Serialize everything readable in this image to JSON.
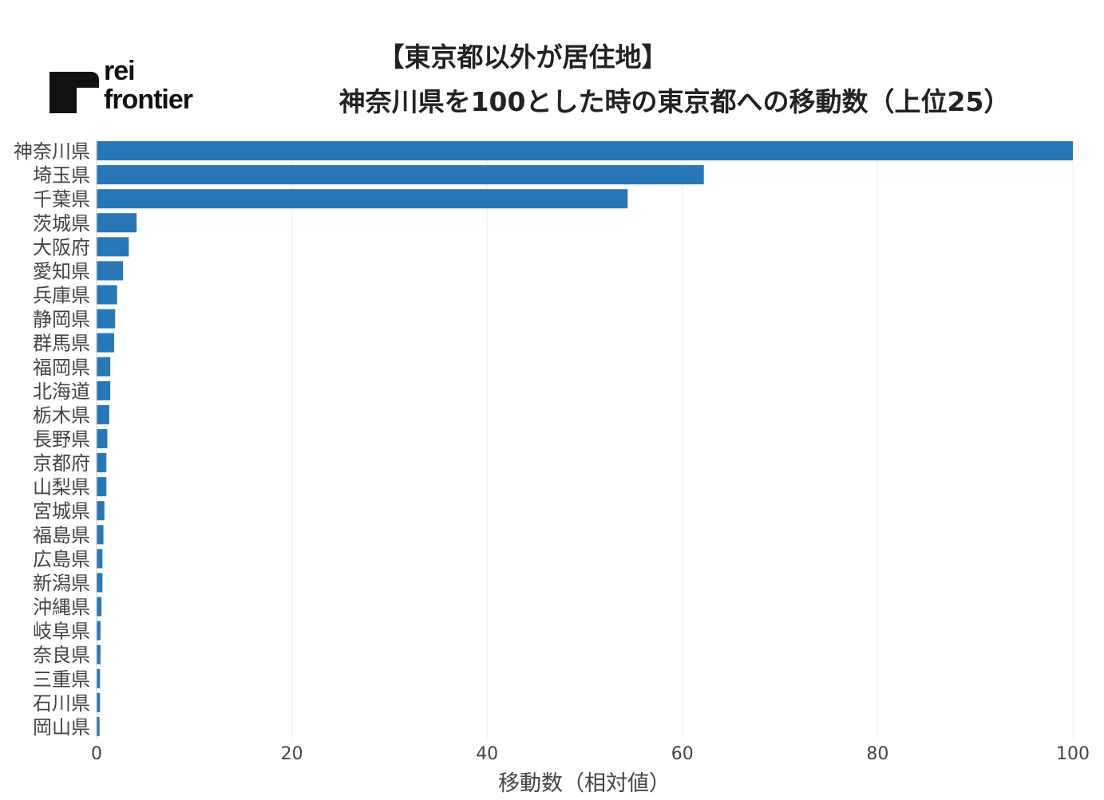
{
  "logo": {
    "line1": "rei",
    "line2": "frontier"
  },
  "colors": {
    "bar": "#2878b8",
    "grid": "#eeeeee",
    "text": "#444444",
    "title": "#222222"
  },
  "chart_data": {
    "type": "bar",
    "orientation": "horizontal",
    "title": [
      "【東京都以外が居住地】",
      "神奈川県を100とした時の東京都への移動数（上位25）"
    ],
    "xlabel": "移動数（相対値）",
    "ylabel": "",
    "xlim": [
      0,
      100
    ],
    "xticks": [
      0,
      20,
      40,
      60,
      80,
      100
    ],
    "grid": true,
    "categories": [
      "神奈川県",
      "埼玉県",
      "千葉県",
      "茨城県",
      "大阪府",
      "愛知県",
      "兵庫県",
      "静岡県",
      "群馬県",
      "福岡県",
      "北海道",
      "栃木県",
      "長野県",
      "京都府",
      "山梨県",
      "宮城県",
      "福島県",
      "広島県",
      "新潟県",
      "沖縄県",
      "岐阜県",
      "奈良県",
      "三重県",
      "石川県",
      "岡山県"
    ],
    "values": [
      100,
      62.2,
      54.4,
      4.1,
      3.3,
      2.7,
      2.1,
      1.9,
      1.8,
      1.4,
      1.4,
      1.3,
      1.1,
      1.0,
      1.0,
      0.8,
      0.7,
      0.6,
      0.6,
      0.5,
      0.4,
      0.4,
      0.35,
      0.35,
      0.3
    ]
  }
}
